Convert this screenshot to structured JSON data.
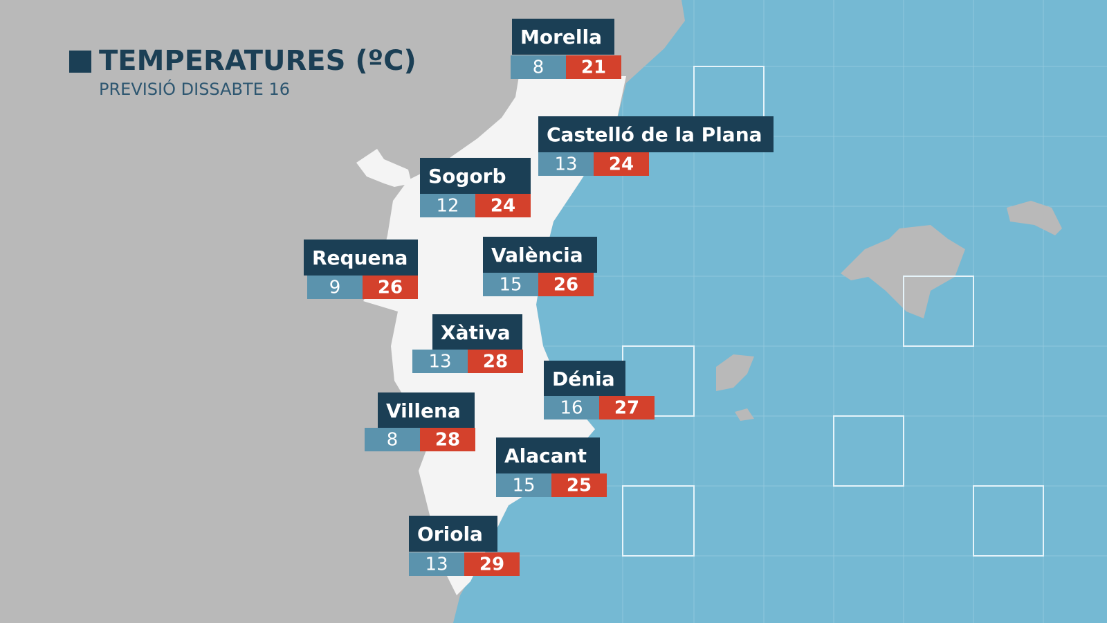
{
  "header": {
    "title": "TEMPERATURES (ºC)",
    "subtitle": "PREVISIÓ DISSABTE 16"
  },
  "cities": [
    {
      "name": "Morella",
      "min": 8,
      "max": 21
    },
    {
      "name": "Castelló de la Plana",
      "min": 13,
      "max": 24
    },
    {
      "name": "Sogorb",
      "min": 12,
      "max": 24
    },
    {
      "name": "Requena",
      "min": 9,
      "max": 26
    },
    {
      "name": "València",
      "min": 15,
      "max": 26
    },
    {
      "name": "Xàtiva",
      "min": 13,
      "max": 28
    },
    {
      "name": "Dénia",
      "min": 16,
      "max": 27
    },
    {
      "name": "Villena",
      "min": 8,
      "max": 28
    },
    {
      "name": "Alacant",
      "min": 15,
      "max": 25
    },
    {
      "name": "Oriola",
      "min": 13,
      "max": 29
    }
  ]
}
